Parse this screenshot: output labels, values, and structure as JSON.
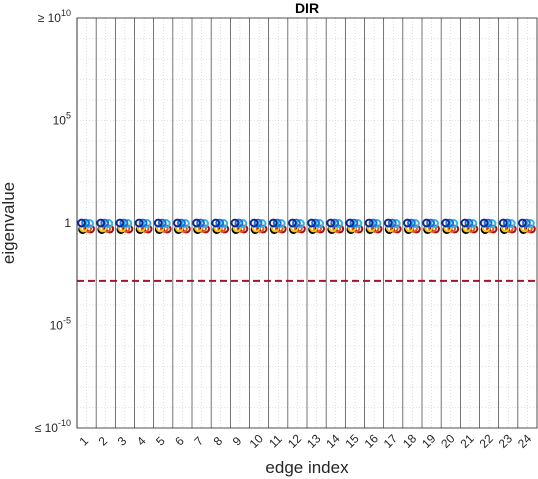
{
  "chart_data": {
    "type": "scatter",
    "title": "DIR",
    "xlabel": "edge index",
    "ylabel": "eigenvalue",
    "y_scale": "log",
    "ylim": [
      1e-10,
      10000000000.0
    ],
    "xlim": [
      0.5,
      24.5
    ],
    "y_ticks": [
      {
        "value": 10000000000.0,
        "prefix": "≥ 10",
        "exp": "10"
      },
      {
        "value": 100000.0,
        "prefix": "10",
        "exp": "5"
      },
      {
        "value": 1,
        "prefix": "1",
        "exp": ""
      },
      {
        "value": 1e-05,
        "prefix": "10",
        "exp": "-5"
      },
      {
        "value": 1e-10,
        "prefix": "≤ 10",
        "exp": "-10"
      }
    ],
    "categories": [
      "1",
      "2",
      "3",
      "4",
      "5",
      "6",
      "7",
      "8",
      "9",
      "10",
      "11",
      "12",
      "13",
      "14",
      "15",
      "16",
      "17",
      "18",
      "19",
      "20",
      "21",
      "22",
      "23",
      "24"
    ],
    "threshold": {
      "value": 0.0015,
      "style": "dashed",
      "color": "#a2142f"
    },
    "grid": true,
    "marker_colors": [
      "#0b2a8f",
      "#1f6fe0",
      "#2cb6e8",
      "#f5c21b",
      "#e8551a",
      "#a11218",
      "#000000"
    ],
    "series_note_values": [
      1.0,
      1.0,
      0.95,
      0.9,
      0.85,
      0.8,
      0.75
    ]
  }
}
